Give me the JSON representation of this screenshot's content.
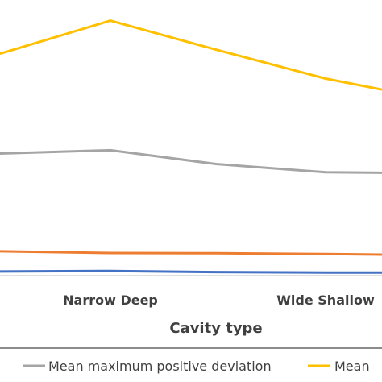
{
  "chart_data": {
    "type": "line",
    "categories": [
      "",
      "Narrow Deep",
      "",
      "Wide Shallow",
      ""
    ],
    "visible_tick_labels": [
      "Narrow Deep",
      "Wide Shallow"
    ],
    "xlabel": "Cavity type",
    "ylabel": "",
    "ylim": [
      0,
      100
    ],
    "grid": false,
    "legend_position": "bottom",
    "series": [
      {
        "key": "blue",
        "name": "",
        "color": "#4472C4",
        "values": [
          1.5,
          1.7,
          1.3,
          1.1,
          1.1
        ],
        "in_legend": false
      },
      {
        "key": "orange",
        "name": "",
        "color": "#ED7D31",
        "values": [
          8.8,
          8.2,
          8.1,
          7.8,
          7.6
        ],
        "in_legend": false
      },
      {
        "key": "gray",
        "name": "Mean maximum positive deviation",
        "color": "#A5A5A5",
        "values": [
          44.3,
          45.5,
          40.5,
          37.5,
          37.3
        ],
        "in_legend": true
      },
      {
        "key": "yellow",
        "name": "Mean",
        "color": "#FFC000",
        "values": [
          80.5,
          92.5,
          82.0,
          71.5,
          67.5
        ],
        "in_legend": true
      }
    ]
  }
}
